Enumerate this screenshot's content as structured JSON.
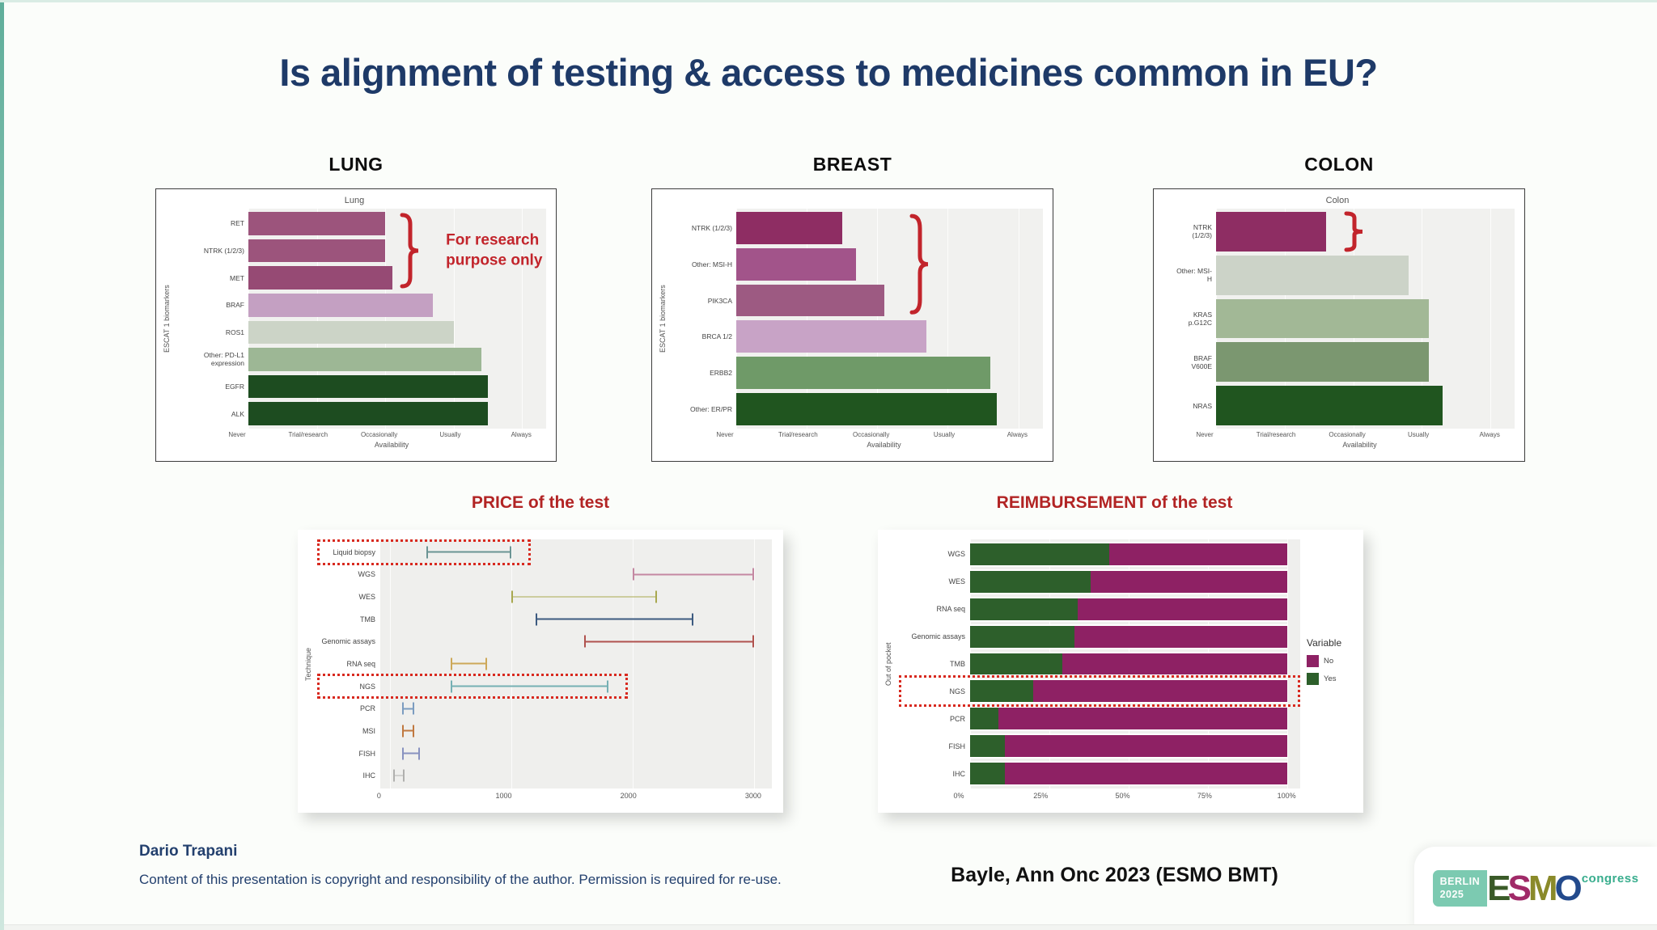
{
  "title": "Is alignment of testing & access to medicines common in EU?",
  "colors": {
    "accent_navy": "#1e3a68",
    "accent_red_title": "#b22424",
    "bracket_red": "#c2242b",
    "dotted_red": "#d8291f",
    "reimb_no": "#8e2164",
    "reimb_yes": "#2d5f2b"
  },
  "chart_data": [
    {
      "type": "bar",
      "id": "lung",
      "header": "LUNG",
      "title": "Lung",
      "xlabel": "Availability",
      "ylabel": "ESCAT 1 biomarkers",
      "x_tick_labels": [
        "Never",
        "Trial/research",
        "Occasionally",
        "Usually",
        "Always"
      ],
      "x_range": [
        0,
        4.35
      ],
      "categories": [
        "RET",
        "NTRK (1/2/3)",
        "MET",
        "BRAF",
        "ROS1",
        "Other: PD-L1 expression",
        "EGFR",
        "ALK"
      ],
      "values": [
        2.0,
        2.0,
        2.1,
        2.7,
        3.0,
        3.4,
        3.5,
        3.5
      ],
      "colors": [
        "#9c547c",
        "#9c547c",
        "#964a74",
        "#c4a0c2",
        "#ccd4c7",
        "#9db795",
        "#1d4c20",
        "#1d4c20"
      ],
      "bracket": {
        "rows": 3,
        "x": 2.2,
        "note": "For research purpose only"
      }
    },
    {
      "type": "bar",
      "id": "breast",
      "header": "BREAST",
      "title": "",
      "xlabel": "Availability",
      "ylabel": "ESCAT 1 biomarkers",
      "x_tick_labels": [
        "Never",
        "Trial/research",
        "Occasionally",
        "Usually",
        "Always"
      ],
      "x_range": [
        0,
        4.35
      ],
      "categories": [
        "NTRK (1/2/3)",
        "Other: MSI-H",
        "PIK3CA",
        "BRCA 1/2",
        "ERBB2",
        "Other: ER/PR"
      ],
      "values": [
        1.5,
        1.7,
        2.1,
        2.7,
        3.6,
        3.7
      ],
      "colors": [
        "#8e2d63",
        "#a2548a",
        "#9d5a82",
        "#c8a3c6",
        "#6f9a68",
        "#20551f"
      ],
      "bracket": {
        "rows": 3,
        "x": 2.45,
        "note": null
      }
    },
    {
      "type": "bar",
      "id": "colon",
      "header": "COLON",
      "title": "Colon",
      "xlabel": "Availability",
      "ylabel": "",
      "x_tick_labels": [
        "Never",
        "Trial/research",
        "Occasionally",
        "Usually",
        "Always"
      ],
      "x_range": [
        0,
        4.35
      ],
      "categories": [
        "NTRK (1/2/3)",
        "Other: MSI-H",
        "KRAS p.G12C",
        "BRAF V600E",
        "NRAS"
      ],
      "values": [
        1.6,
        2.8,
        3.1,
        3.1,
        3.3
      ],
      "colors": [
        "#8e2d63",
        "#ccd3c8",
        "#a2b896",
        "#7b9770",
        "#20551f"
      ],
      "bracket": {
        "rows": 1,
        "x": 1.85,
        "note": null
      }
    },
    {
      "type": "range",
      "id": "price",
      "header": "PRICE of the test",
      "ylabel": "Technique",
      "x_ticks": [
        0,
        1000,
        2000,
        3000
      ],
      "x_range": [
        -80,
        3150
      ],
      "rows": [
        {
          "label": "Liquid biopsy",
          "min": 300,
          "max": 1000,
          "color": "#6b9494",
          "highlight": true
        },
        {
          "label": "WGS",
          "min": 2000,
          "max": 3000,
          "color": "#c488a2",
          "highlight": false
        },
        {
          "label": "WES",
          "min": 1000,
          "max": 2200,
          "color": "#a8a84f",
          "highlight": false
        },
        {
          "label": "TMB",
          "min": 1200,
          "max": 2500,
          "color": "#3c5a80",
          "highlight": false
        },
        {
          "label": "Genomic assays",
          "min": 1600,
          "max": 3000,
          "color": "#b0524e",
          "highlight": false
        },
        {
          "label": "RNA seq",
          "min": 500,
          "max": 800,
          "color": "#cda859",
          "highlight": false
        },
        {
          "label": "NGS",
          "min": 500,
          "max": 1800,
          "color": "#76b0b4",
          "highlight": true
        },
        {
          "label": "PCR",
          "min": 100,
          "max": 200,
          "color": "#7b9cc0",
          "highlight": false
        },
        {
          "label": "MSI",
          "min": 100,
          "max": 200,
          "color": "#c07840",
          "highlight": false
        },
        {
          "label": "FISH",
          "min": 100,
          "max": 250,
          "color": "#8892c0",
          "highlight": false
        },
        {
          "label": "IHC",
          "min": 30,
          "max": 120,
          "color": "#b0b0ae",
          "highlight": false
        }
      ]
    },
    {
      "type": "stacked-bar",
      "id": "reimbursement",
      "header": "REIMBURSEMENT of the test",
      "ylabel": "Out of pocket",
      "x_tick_labels": [
        "0%",
        "25%",
        "50%",
        "75%",
        "100%"
      ],
      "x_tick_values": [
        0,
        25,
        50,
        75,
        100
      ],
      "legend": {
        "title": "Variable",
        "items": [
          {
            "label": "No",
            "color": "#8e2164"
          },
          {
            "label": "Yes",
            "color": "#2d5f2b"
          }
        ]
      },
      "categories": [
        "WGS",
        "WES",
        "RNA seq",
        "Genomic assays",
        "TMB",
        "NGS",
        "PCR",
        "FISH",
        "IHC"
      ],
      "series": [
        {
          "name": "Yes",
          "values": [
            44,
            38,
            34,
            33,
            29,
            20,
            9,
            11,
            11
          ]
        },
        {
          "name": "No",
          "values": [
            56,
            62,
            66,
            67,
            71,
            80,
            91,
            89,
            89
          ]
        }
      ],
      "highlight_row": "NGS"
    }
  ],
  "footer": {
    "author": "Dario Trapani",
    "copyright": "Content of this presentation is copyright and responsibility of the author. Permission is required for re-use.",
    "citation": "Bayle, Ann Onc 2023 (ESMO BMT)"
  },
  "logo": {
    "badge_line1": "BERLIN",
    "badge_line2": "2025",
    "congress": "congress",
    "letters": [
      {
        "ch": "E",
        "color": "#3a5a28"
      },
      {
        "ch": "S",
        "color": "#a02a68"
      },
      {
        "ch": "M",
        "color": "#8a8a2a"
      },
      {
        "ch": "O",
        "color": "#234a8c"
      }
    ]
  }
}
